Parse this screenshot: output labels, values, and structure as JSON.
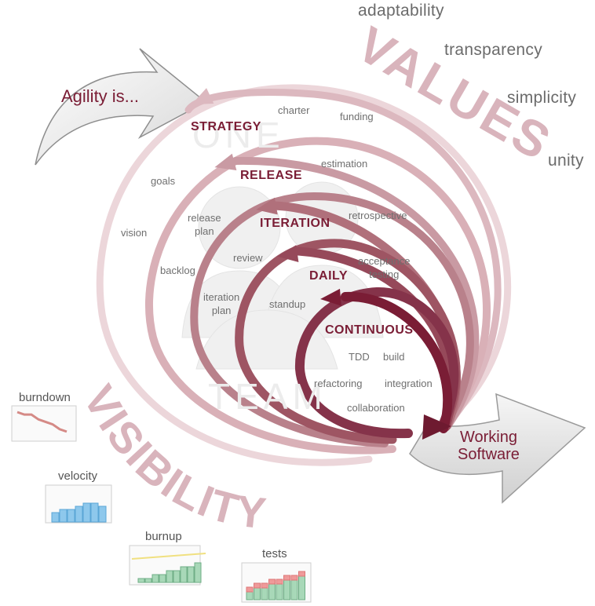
{
  "intro": "Agility is...",
  "values_title": "VALUES",
  "values": [
    "adaptability",
    "transparency",
    "simplicity",
    "unity"
  ],
  "levels": [
    "STRATEGY",
    "RELEASE",
    "ITERATION",
    "DAILY",
    "CONTINUOUS"
  ],
  "activities": {
    "charter": "charter",
    "funding": "funding",
    "estimation": "estimation",
    "goals": "goals",
    "vision": "vision",
    "release_plan": "release\nplan",
    "retrospective": "retrospective",
    "review": "review",
    "backlog": "backlog",
    "acceptance_testing": "acceptance\ntesting",
    "iteration_plan": "iteration\nplan",
    "standup": "standup",
    "tdd": "TDD",
    "build": "build",
    "refactoring": "refactoring",
    "integration": "integration",
    "collaboration": "collaboration"
  },
  "team": {
    "one": "ONE",
    "team": "TEAM"
  },
  "visibility_title": "VISIBILITY",
  "metrics": [
    "burndown",
    "velocity",
    "burnup",
    "tests"
  ],
  "output": "Working\nSoftware",
  "colors": {
    "dark": "#7a1d35",
    "mid": "#a85566",
    "light": "#d9b4bc",
    "text": "#6b6b6b"
  },
  "chart_data": [
    {
      "type": "line",
      "title": "burndown",
      "values": [
        9,
        8,
        8,
        6,
        5,
        4,
        2,
        1
      ]
    },
    {
      "type": "bar",
      "title": "velocity",
      "values": [
        3,
        4,
        4,
        5,
        6,
        6,
        5
      ]
    },
    {
      "type": "bar",
      "title": "burnup",
      "values": [
        1,
        1,
        2,
        2,
        3,
        3,
        4,
        4,
        5
      ]
    },
    {
      "type": "bar",
      "title": "tests",
      "series": [
        {
          "values": [
            2,
            3,
            3,
            4,
            4,
            5,
            5,
            6
          ]
        },
        {
          "values": [
            1,
            1,
            1,
            1,
            1,
            1,
            1,
            1
          ]
        }
      ]
    }
  ]
}
